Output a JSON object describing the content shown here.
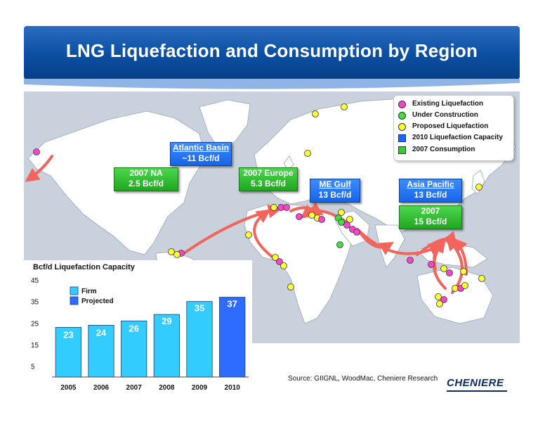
{
  "title": "LNG Liquefaction and Consumption by Region",
  "legend": [
    {
      "label": "Existing Liquefaction",
      "color": "#ff44cc",
      "shape": "circle"
    },
    {
      "label": "Under Construction",
      "color": "#44dd44",
      "shape": "circle"
    },
    {
      "label": "Proposed Liquefaction",
      "color": "#ffff33",
      "shape": "circle"
    },
    {
      "label": "2010 Liquefaction Capacity",
      "color": "#1a66ff",
      "shape": "square"
    },
    {
      "label": "2007 Consumption",
      "color": "#33cc33",
      "shape": "square"
    }
  ],
  "callouts": {
    "atlantic": {
      "line1": "Atlantic Basin",
      "line2": "~11 Bcf/d"
    },
    "na": {
      "line1": "2007 NA",
      "line2": "2.5 Bcf/d"
    },
    "europe": {
      "line1": "2007 Europe",
      "line2": "5.3 Bcf/d"
    },
    "megulf": {
      "line1": "ME Gulf",
      "line2": "13 Bcf/d"
    },
    "asia": {
      "line1": "Asia Pacific",
      "line2": "13 Bcf/d"
    },
    "asia_cons": {
      "line1": "2007",
      "line2": "15 Bcf/d"
    }
  },
  "source": "Source: GIIGNL, WoodMac, Cheniere Research",
  "logo": "CHENIERE",
  "colors": {
    "firm": "#33ccff",
    "projected": "#2e6bff",
    "arrow": "#f2645c",
    "title_bar": "#0a4fa1"
  },
  "chart_data": {
    "type": "bar",
    "title": "Bcf/d Liquefaction Capacity",
    "categories": [
      "2005",
      "2006",
      "2007",
      "2008",
      "2009",
      "2010"
    ],
    "values": [
      23,
      24,
      26,
      29,
      35,
      37
    ],
    "status": [
      "Firm",
      "Firm",
      "Firm",
      "Firm",
      "Firm",
      "Projected"
    ],
    "legend": [
      "Firm",
      "Projected"
    ],
    "yticks": [
      5,
      15,
      25,
      35,
      45
    ],
    "ylim": [
      0,
      45
    ]
  }
}
